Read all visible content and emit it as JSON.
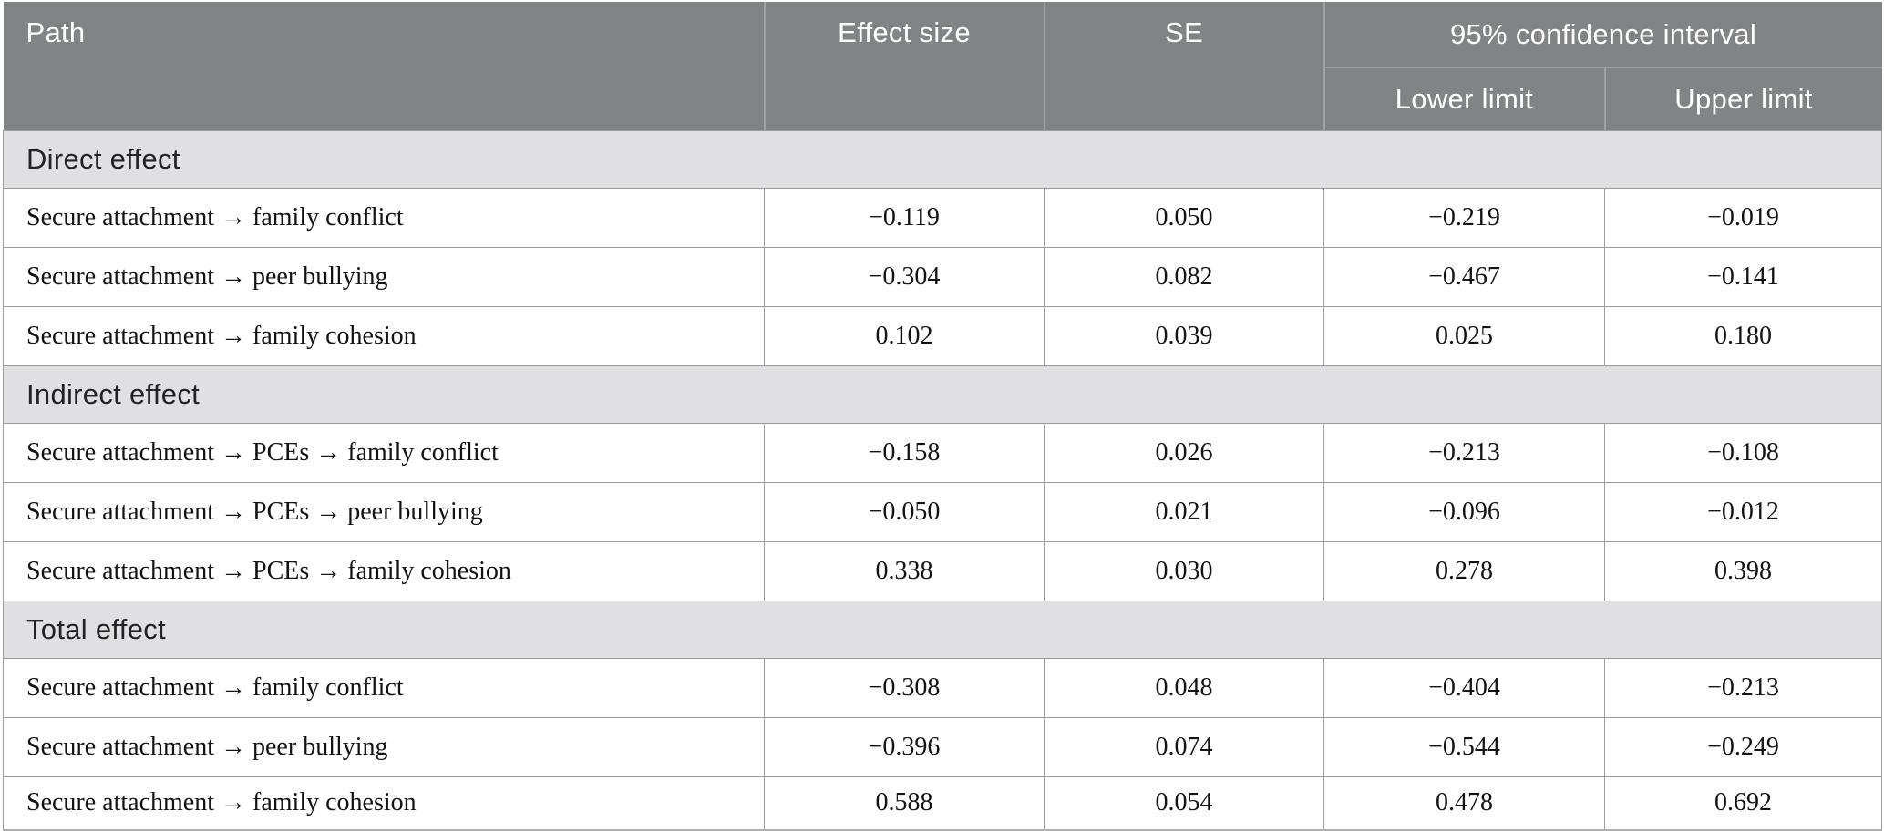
{
  "figure": {
    "header": {
      "path": "Path",
      "effect_size": "Effect size",
      "se": "SE",
      "ci": "95% confidence interval",
      "lower": "Lower limit",
      "upper": "Upper limit"
    },
    "sections": [
      {
        "label": "Direct effect",
        "rows": [
          {
            "path": "Secure attachment → family conflict",
            "effect_size": "−0.119",
            "se": "0.050",
            "lower": "−0.219",
            "upper": "−0.019"
          },
          {
            "path": "Secure attachment → peer bullying",
            "effect_size": "−0.304",
            "se": "0.082",
            "lower": "−0.467",
            "upper": "−0.141"
          },
          {
            "path": "Secure attachment → family cohesion",
            "effect_size": "0.102",
            "se": "0.039",
            "lower": "0.025",
            "upper": "0.180"
          }
        ]
      },
      {
        "label": "Indirect effect",
        "rows": [
          {
            "path": "Secure attachment → PCEs → family conflict",
            "effect_size": "−0.158",
            "se": "0.026",
            "lower": "−0.213",
            "upper": "−0.108"
          },
          {
            "path": "Secure attachment → PCEs → peer bullying",
            "effect_size": "−0.050",
            "se": "0.021",
            "lower": "−0.096",
            "upper": "−0.012"
          },
          {
            "path": "Secure attachment → PCEs → family cohesion",
            "effect_size": "0.338",
            "se": "0.030",
            "lower": "0.278",
            "upper": "0.398"
          }
        ]
      },
      {
        "label": "Total effect",
        "rows": [
          {
            "path": "Secure attachment → family conflict",
            "effect_size": "−0.308",
            "se": "0.048",
            "lower": "−0.404",
            "upper": "−0.213"
          },
          {
            "path": "Secure attachment → peer bullying",
            "effect_size": "−0.396",
            "se": "0.074",
            "lower": "−0.544",
            "upper": "−0.249"
          },
          {
            "path": "Secure attachment → family cohesion",
            "effect_size": "0.588",
            "se": "0.054",
            "lower": "0.478",
            "upper": "0.692"
          }
        ]
      }
    ],
    "colors": {
      "header_bg": "#828384",
      "header_divider": "#a1a2a3",
      "header_text": "#ffffff",
      "section_bg": "#e0e0e2",
      "grid_line": "#9b9b9b",
      "body_text": "#131313"
    }
  }
}
